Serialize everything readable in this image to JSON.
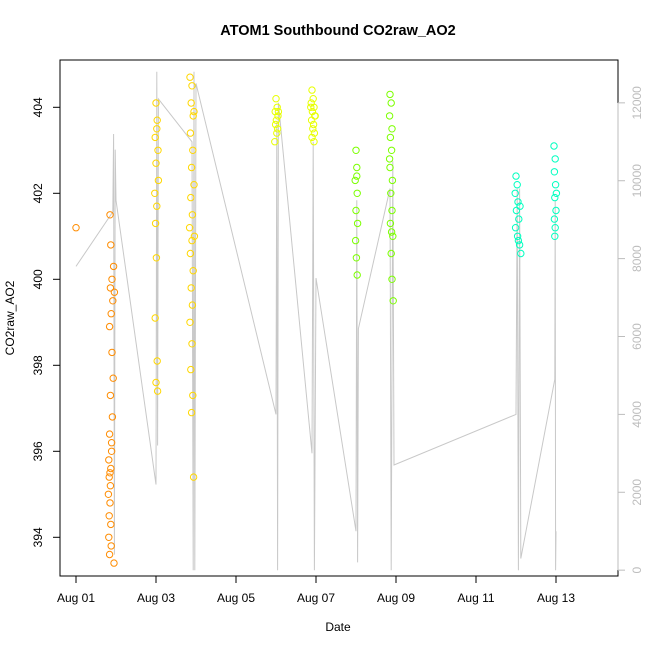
{
  "chart_data": {
    "type": "scatter",
    "title": "ATOM1 Southbound CO2raw_AO2",
    "xlabel": "Date",
    "ylabel": "CO2raw_AO2",
    "x_unit": "days since Aug 01",
    "xlim": [
      -0.4,
      13.55
    ],
    "ylim": [
      393.1,
      405.1
    ],
    "y2lim": [
      -150,
      13100
    ],
    "x_ticks": [
      {
        "x": 0,
        "label": "Aug 01"
      },
      {
        "x": 2,
        "label": "Aug 03"
      },
      {
        "x": 4,
        "label": "Aug 05"
      },
      {
        "x": 6,
        "label": "Aug 07"
      },
      {
        "x": 8,
        "label": "Aug 09"
      },
      {
        "x": 10,
        "label": "Aug 11"
      },
      {
        "x": 12,
        "label": "Aug 13"
      }
    ],
    "y_ticks": [
      394,
      396,
      398,
      400,
      402,
      404
    ],
    "y2_ticks": [
      0,
      2000,
      4000,
      6000,
      8000,
      10000,
      12000
    ],
    "series": [
      {
        "name": "CO2raw_AO2",
        "axis": "left",
        "mark": "open-circle",
        "points": [
          {
            "x": 0.0,
            "y": 401.2
          },
          {
            "x": 0.85,
            "y": 401.5
          },
          {
            "x": 0.87,
            "y": 400.8
          },
          {
            "x": 0.9,
            "y": 400.0
          },
          {
            "x": 0.86,
            "y": 399.8
          },
          {
            "x": 0.92,
            "y": 399.5
          },
          {
            "x": 0.88,
            "y": 399.2
          },
          {
            "x": 0.84,
            "y": 398.9
          },
          {
            "x": 0.9,
            "y": 398.3
          },
          {
            "x": 0.93,
            "y": 397.7
          },
          {
            "x": 0.86,
            "y": 397.3
          },
          {
            "x": 0.91,
            "y": 396.8
          },
          {
            "x": 0.84,
            "y": 396.4
          },
          {
            "x": 0.89,
            "y": 396.0
          },
          {
            "x": 0.82,
            "y": 395.8
          },
          {
            "x": 0.87,
            "y": 395.6
          },
          {
            "x": 0.83,
            "y": 395.4
          },
          {
            "x": 0.86,
            "y": 395.2
          },
          {
            "x": 0.81,
            "y": 395.0
          },
          {
            "x": 0.85,
            "y": 394.8
          },
          {
            "x": 0.83,
            "y": 394.5
          },
          {
            "x": 0.87,
            "y": 394.3
          },
          {
            "x": 0.82,
            "y": 394.0
          },
          {
            "x": 0.88,
            "y": 393.8
          },
          {
            "x": 0.84,
            "y": 393.6
          },
          {
            "x": 0.95,
            "y": 393.4
          },
          {
            "x": 0.94,
            "y": 400.3
          },
          {
            "x": 0.96,
            "y": 399.7
          },
          {
            "x": 0.89,
            "y": 396.2
          },
          {
            "x": 0.85,
            "y": 395.5
          },
          {
            "x": 2.0,
            "y": 404.1
          },
          {
            "x": 2.03,
            "y": 403.7
          },
          {
            "x": 1.98,
            "y": 403.3
          },
          {
            "x": 2.05,
            "y": 403.0
          },
          {
            "x": 2.0,
            "y": 402.7
          },
          {
            "x": 1.97,
            "y": 402.0
          },
          {
            "x": 2.02,
            "y": 401.7
          },
          {
            "x": 1.99,
            "y": 401.3
          },
          {
            "x": 2.01,
            "y": 400.5
          },
          {
            "x": 1.98,
            "y": 399.1
          },
          {
            "x": 2.03,
            "y": 398.1
          },
          {
            "x": 2.0,
            "y": 397.6
          },
          {
            "x": 2.04,
            "y": 397.4
          },
          {
            "x": 2.02,
            "y": 403.5
          },
          {
            "x": 2.06,
            "y": 402.3
          },
          {
            "x": 2.85,
            "y": 404.7
          },
          {
            "x": 2.9,
            "y": 404.5
          },
          {
            "x": 2.88,
            "y": 404.1
          },
          {
            "x": 2.93,
            "y": 403.8
          },
          {
            "x": 2.86,
            "y": 403.4
          },
          {
            "x": 2.92,
            "y": 403.0
          },
          {
            "x": 2.89,
            "y": 402.6
          },
          {
            "x": 2.95,
            "y": 402.2
          },
          {
            "x": 2.87,
            "y": 401.9
          },
          {
            "x": 2.91,
            "y": 401.5
          },
          {
            "x": 2.84,
            "y": 401.2
          },
          {
            "x": 2.9,
            "y": 400.9
          },
          {
            "x": 2.86,
            "y": 400.6
          },
          {
            "x": 2.93,
            "y": 400.2
          },
          {
            "x": 2.88,
            "y": 399.8
          },
          {
            "x": 2.91,
            "y": 399.4
          },
          {
            "x": 2.85,
            "y": 399.0
          },
          {
            "x": 2.9,
            "y": 398.5
          },
          {
            "x": 2.87,
            "y": 397.9
          },
          {
            "x": 2.92,
            "y": 397.3
          },
          {
            "x": 2.89,
            "y": 396.9
          },
          {
            "x": 2.94,
            "y": 395.4
          },
          {
            "x": 2.96,
            "y": 401.0
          },
          {
            "x": 2.95,
            "y": 403.9
          },
          {
            "x": 5.0,
            "y": 404.2
          },
          {
            "x": 5.03,
            "y": 404.0
          },
          {
            "x": 4.98,
            "y": 403.9
          },
          {
            "x": 5.05,
            "y": 403.8
          },
          {
            "x": 5.01,
            "y": 403.7
          },
          {
            "x": 4.99,
            "y": 403.6
          },
          {
            "x": 5.04,
            "y": 403.5
          },
          {
            "x": 5.02,
            "y": 403.4
          },
          {
            "x": 4.97,
            "y": 403.2
          },
          {
            "x": 5.06,
            "y": 403.9
          },
          {
            "x": 5.9,
            "y": 404.4
          },
          {
            "x": 5.93,
            "y": 404.2
          },
          {
            "x": 5.88,
            "y": 404.1
          },
          {
            "x": 5.95,
            "y": 404.0
          },
          {
            "x": 5.91,
            "y": 403.9
          },
          {
            "x": 5.97,
            "y": 403.8
          },
          {
            "x": 5.89,
            "y": 403.7
          },
          {
            "x": 5.94,
            "y": 403.6
          },
          {
            "x": 5.92,
            "y": 403.5
          },
          {
            "x": 5.96,
            "y": 403.4
          },
          {
            "x": 5.9,
            "y": 403.3
          },
          {
            "x": 5.95,
            "y": 403.2
          },
          {
            "x": 5.98,
            "y": 403.8
          },
          {
            "x": 5.87,
            "y": 404.0
          },
          {
            "x": 7.0,
            "y": 403.0
          },
          {
            "x": 7.02,
            "y": 402.6
          },
          {
            "x": 6.98,
            "y": 402.3
          },
          {
            "x": 7.03,
            "y": 402.0
          },
          {
            "x": 7.0,
            "y": 401.6
          },
          {
            "x": 7.04,
            "y": 401.3
          },
          {
            "x": 6.99,
            "y": 400.9
          },
          {
            "x": 7.01,
            "y": 400.5
          },
          {
            "x": 7.03,
            "y": 400.1
          },
          {
            "x": 7.02,
            "y": 402.4
          },
          {
            "x": 7.85,
            "y": 404.3
          },
          {
            "x": 7.88,
            "y": 404.1
          },
          {
            "x": 7.84,
            "y": 403.8
          },
          {
            "x": 7.9,
            "y": 403.5
          },
          {
            "x": 7.86,
            "y": 403.3
          },
          {
            "x": 7.89,
            "y": 403.0
          },
          {
            "x": 7.85,
            "y": 402.6
          },
          {
            "x": 7.91,
            "y": 402.3
          },
          {
            "x": 7.87,
            "y": 402.0
          },
          {
            "x": 7.9,
            "y": 401.6
          },
          {
            "x": 7.86,
            "y": 401.3
          },
          {
            "x": 7.92,
            "y": 401.0
          },
          {
            "x": 7.88,
            "y": 400.6
          },
          {
            "x": 7.9,
            "y": 400.0
          },
          {
            "x": 7.93,
            "y": 399.5
          },
          {
            "x": 7.84,
            "y": 402.8
          },
          {
            "x": 7.89,
            "y": 401.1
          },
          {
            "x": 11.0,
            "y": 402.4
          },
          {
            "x": 11.03,
            "y": 402.2
          },
          {
            "x": 10.98,
            "y": 402.0
          },
          {
            "x": 11.05,
            "y": 401.8
          },
          {
            "x": 11.01,
            "y": 401.6
          },
          {
            "x": 11.07,
            "y": 401.4
          },
          {
            "x": 10.99,
            "y": 401.2
          },
          {
            "x": 11.04,
            "y": 401.0
          },
          {
            "x": 11.09,
            "y": 400.8
          },
          {
            "x": 11.12,
            "y": 400.6
          },
          {
            "x": 11.06,
            "y": 400.9
          },
          {
            "x": 11.1,
            "y": 401.7
          },
          {
            "x": 11.95,
            "y": 403.1
          },
          {
            "x": 11.98,
            "y": 402.8
          },
          {
            "x": 11.96,
            "y": 402.5
          },
          {
            "x": 11.99,
            "y": 402.2
          },
          {
            "x": 11.97,
            "y": 401.9
          },
          {
            "x": 12.0,
            "y": 401.6
          },
          {
            "x": 11.96,
            "y": 401.4
          },
          {
            "x": 11.98,
            "y": 401.2
          },
          {
            "x": 11.97,
            "y": 401.0
          },
          {
            "x": 12.01,
            "y": 402.0
          }
        ]
      },
      {
        "name": "",
        "axis": "right",
        "mark": "line",
        "color": "#c8c8c8",
        "points": [
          {
            "x": 0.0,
            "y": 7800
          },
          {
            "x": 0.92,
            "y": 9200
          },
          {
            "x": 0.94,
            "y": 11200
          },
          {
            "x": 0.96,
            "y": 400
          },
          {
            "x": 0.98,
            "y": 10800
          },
          {
            "x": 1.0,
            "y": 9500
          },
          {
            "x": 2.0,
            "y": 2200
          },
          {
            "x": 2.02,
            "y": 12800
          },
          {
            "x": 2.04,
            "y": 3200
          },
          {
            "x": 2.06,
            "y": 12100
          },
          {
            "x": 2.9,
            "y": 11000
          },
          {
            "x": 2.93,
            "y": 0
          },
          {
            "x": 2.95,
            "y": 12800
          },
          {
            "x": 2.97,
            "y": 0
          },
          {
            "x": 3.0,
            "y": 12500
          },
          {
            "x": 5.0,
            "y": 4000
          },
          {
            "x": 5.02,
            "y": 11500
          },
          {
            "x": 5.04,
            "y": 0
          },
          {
            "x": 5.06,
            "y": 12000
          },
          {
            "x": 5.9,
            "y": 3000
          },
          {
            "x": 5.93,
            "y": 11000
          },
          {
            "x": 5.96,
            "y": 0
          },
          {
            "x": 6.0,
            "y": 7500
          },
          {
            "x": 7.0,
            "y": 1000
          },
          {
            "x": 7.02,
            "y": 9500
          },
          {
            "x": 7.04,
            "y": 200
          },
          {
            "x": 7.06,
            "y": 6200
          },
          {
            "x": 7.85,
            "y": 9800
          },
          {
            "x": 7.88,
            "y": 0
          },
          {
            "x": 7.92,
            "y": 10500
          },
          {
            "x": 7.95,
            "y": 2700
          },
          {
            "x": 11.0,
            "y": 4000
          },
          {
            "x": 11.03,
            "y": 9800
          },
          {
            "x": 11.06,
            "y": 0
          },
          {
            "x": 11.09,
            "y": 9800
          },
          {
            "x": 11.12,
            "y": 300
          },
          {
            "x": 11.97,
            "y": 4900
          },
          {
            "x": 11.98,
            "y": 9500
          },
          {
            "x": 11.99,
            "y": 0
          },
          {
            "x": 12.0,
            "y": 1000
          }
        ]
      }
    ],
    "color_scale": [
      "#ff8c00",
      "#ffd700",
      "#e8ff00",
      "#7cff00",
      "#00ff40",
      "#00ffc0"
    ]
  }
}
